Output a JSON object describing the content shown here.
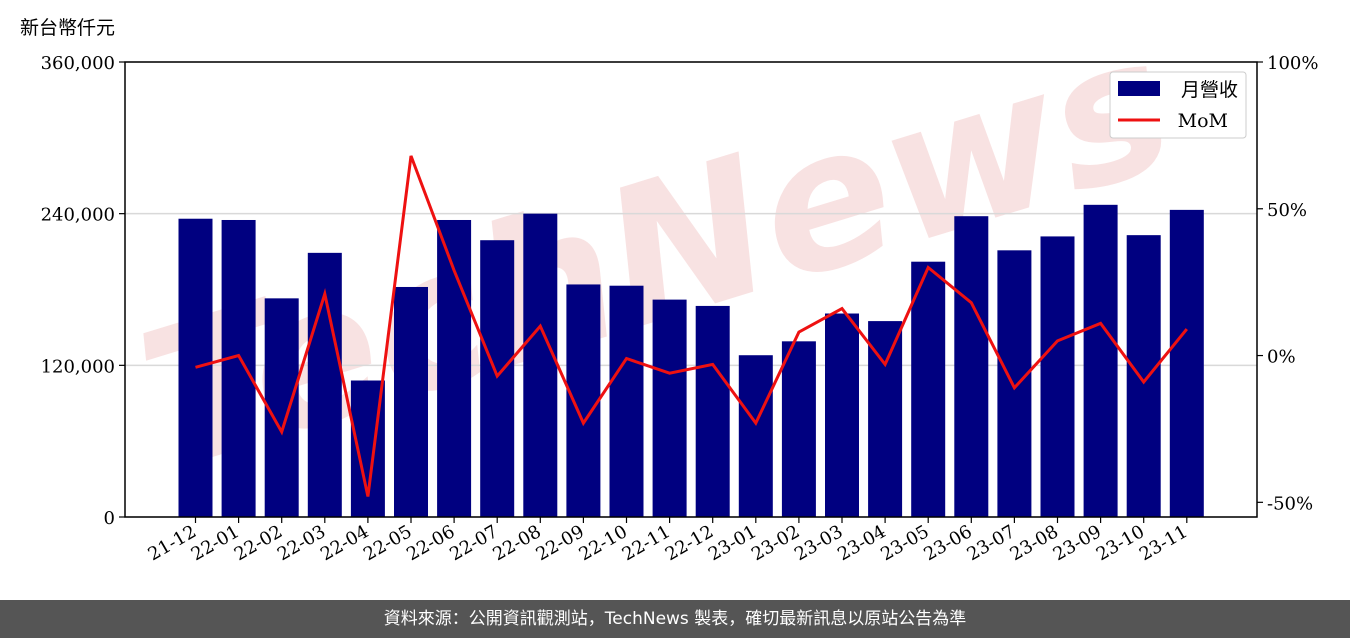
{
  "footer": {
    "source": "資料來源：公開資訊觀測站，TechNews 製表，確切最新訊息以原站公告為準"
  },
  "watermark": {
    "text": "TechNews",
    "color": "#f5d0d0"
  },
  "chart_data": {
    "type": "bar+line",
    "unit_label": "新台幣仟元",
    "categories": [
      "21-12",
      "22-01",
      "22-02",
      "22-03",
      "22-04",
      "22-05",
      "22-06",
      "22-07",
      "22-08",
      "22-09",
      "22-10",
      "22-11",
      "22-12",
      "23-01",
      "23-02",
      "23-03",
      "23-04",
      "23-05",
      "23-06",
      "23-07",
      "23-08",
      "23-09",
      "23-10",
      "23-11"
    ],
    "series": [
      {
        "name": "月營收",
        "axis": "left",
        "type": "bar",
        "color": "#000080",
        "values": [
          236000,
          235000,
          173000,
          209000,
          108000,
          182000,
          235000,
          219000,
          240000,
          184000,
          183000,
          172000,
          167000,
          128000,
          139000,
          161000,
          155000,
          202000,
          238000,
          211000,
          222000,
          247000,
          223000,
          243000
        ]
      },
      {
        "name": "MoM",
        "axis": "right",
        "type": "line",
        "color": "#ee1111",
        "values": [
          -4,
          0,
          -26,
          21,
          -48,
          68,
          29,
          -7,
          10,
          -23,
          -1,
          -6,
          -3,
          -23,
          8,
          16,
          -3,
          30,
          18,
          -11,
          5,
          11,
          -9,
          9
        ]
      }
    ],
    "left_axis": {
      "min": 0,
      "max": 360000,
      "ticks": [
        0,
        120000,
        240000,
        360000
      ],
      "tick_labels": [
        "0",
        "120,000",
        "240,000",
        "360,000"
      ]
    },
    "right_axis": {
      "min": -55,
      "max": 100,
      "ticks": [
        -50,
        0,
        50,
        100
      ],
      "tick_labels": [
        "-50%",
        "0%",
        "50%",
        "100%"
      ]
    },
    "grid": "horizontal",
    "legend": {
      "placement": "top-right",
      "entries": [
        "月營收",
        "MoM"
      ]
    }
  }
}
